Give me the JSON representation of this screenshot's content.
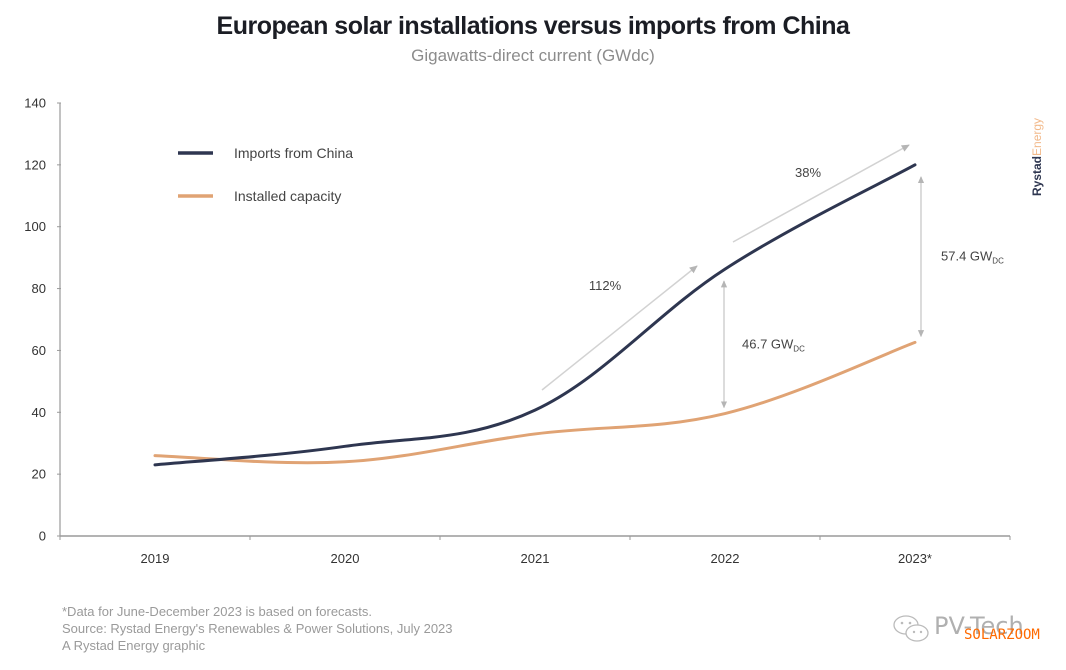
{
  "header": {
    "title": "European solar installations versus imports from China",
    "subtitle": "Gigawatts-direct current (GWdc)"
  },
  "chart_data": {
    "type": "line",
    "title": "European solar installations versus imports from China",
    "subtitle": "Gigawatts-direct current (GWdc)",
    "xlabel": "",
    "ylabel": "",
    "categories": [
      "2019",
      "2020",
      "2021",
      "2022",
      "2023*"
    ],
    "yticks": [
      0,
      20,
      40,
      60,
      80,
      100,
      120,
      140
    ],
    "ylim": [
      0,
      140
    ],
    "grid": false,
    "legend_position": "top-left",
    "series": [
      {
        "name": "Imports from China",
        "color": "#2e3650",
        "values": [
          23,
          29,
          40.7,
          86.3,
          120
        ]
      },
      {
        "name": "Installed capacity",
        "color": "#e0a374",
        "values": [
          26,
          24,
          33,
          39.6,
          62.6
        ]
      }
    ],
    "annotations": [
      {
        "type": "growth-arrow",
        "label": "112%",
        "from": "2021",
        "to": "2022",
        "series": "Imports from China"
      },
      {
        "type": "growth-arrow",
        "label": "38%",
        "from": "2022",
        "to": "2023*",
        "series": "Imports from China"
      },
      {
        "type": "gap",
        "label": "46.7 GW",
        "subscript": "DC",
        "category": "2022"
      },
      {
        "type": "gap",
        "label": "57.4 GW",
        "subscript": "DC",
        "category": "2023*"
      }
    ]
  },
  "footnotes": [
    "*Data for June-December 2023 is based on forecasts.",
    "Source: Rystad Energy's Renewables & Power Solutions, July 2023",
    "A Rystad Energy graphic"
  ],
  "logo": {
    "part1": "Rystad",
    "part2": "Energy"
  },
  "watermark": {
    "text": "PV-Tech",
    "overlay": "SOLARZOOM",
    "icon": "wechat-icon"
  }
}
